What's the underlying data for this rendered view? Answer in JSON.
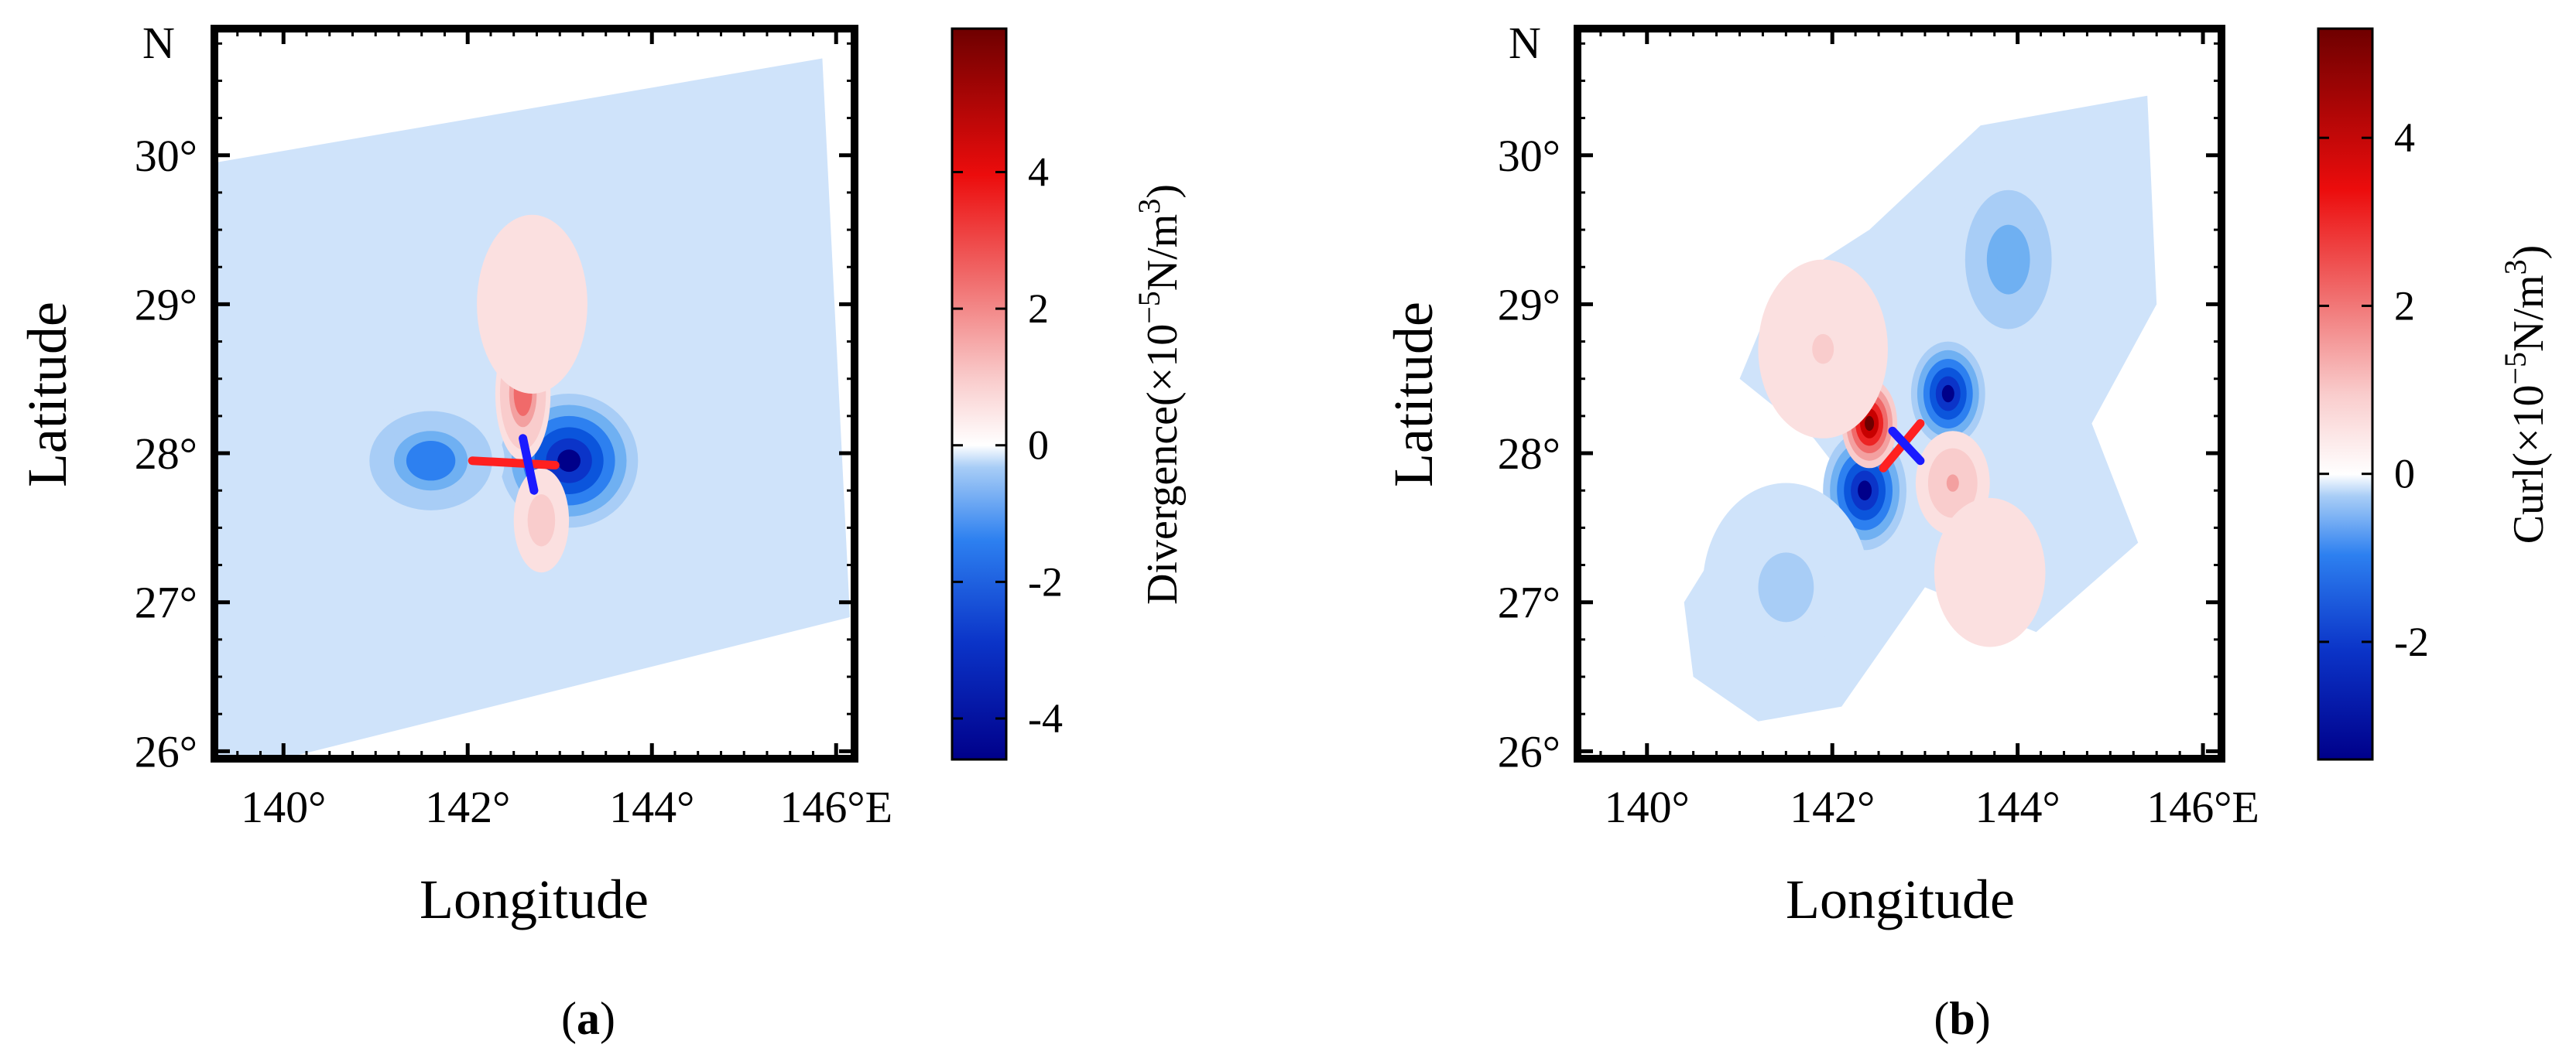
{
  "chart_data": [
    {
      "type": "heatmap",
      "panel_label": "a",
      "quantity": "Divergence",
      "colorbar_title_prefix": "Divergence(×10",
      "colorbar_exponent": "−5",
      "colorbar_unit": "N/m",
      "colorbar_unit_power": "3",
      "colorbar_unit_close": ")",
      "north_label": "N",
      "xlabel": "Longitude",
      "ylabel": "Latitude",
      "xlim": [
        139.25,
        146.2
      ],
      "ylim": [
        25.95,
        30.85
      ],
      "x_ticks": [
        140,
        142,
        144,
        146
      ],
      "x_tick_labels": [
        "140°",
        "142°",
        "144°",
        "146°E"
      ],
      "y_ticks": [
        26,
        27,
        28,
        29,
        30
      ],
      "y_tick_labels": [
        "26°",
        "27°",
        "28°",
        "29°",
        "30°"
      ],
      "clim": [
        -4.6,
        6.1
      ],
      "colorbar_ticks": [
        4,
        2,
        0,
        -2,
        -4
      ],
      "colorbar_tick_labels": [
        "4",
        "2",
        "0",
        "-2",
        "-4"
      ],
      "domain_polygon": [
        [
          139.25,
          29.95
        ],
        [
          145.85,
          30.65
        ],
        [
          146.15,
          26.9
        ],
        [
          140.0,
          25.95
        ],
        [
          139.25,
          25.95
        ]
      ],
      "features": [
        {
          "name": "central divergence lobe east",
          "lon": 143.1,
          "lat": 27.95,
          "value": -4.3,
          "rx": 0.75,
          "ry": 0.45
        },
        {
          "name": "central divergence lobe west",
          "lon": 141.6,
          "lat": 27.95,
          "value": -2.4,
          "rx": 0.8,
          "ry": 0.4
        },
        {
          "name": "positive divergence north",
          "lon": 142.6,
          "lat": 28.4,
          "value": 3.2,
          "rx": 0.3,
          "ry": 0.45
        },
        {
          "name": "positive divergence south",
          "lon": 142.8,
          "lat": 27.55,
          "value": 1.6,
          "rx": 0.3,
          "ry": 0.35
        },
        {
          "name": "weak positive north",
          "lon": 142.7,
          "lat": 29.0,
          "value": 0.8,
          "rx": 0.6,
          "ry": 0.6
        }
      ],
      "markers": [
        {
          "color": "#ff2020",
          "from": [
            142.05,
            27.95
          ],
          "to": [
            142.95,
            27.92
          ]
        },
        {
          "color": "#1a1aff",
          "from": [
            142.6,
            28.1
          ],
          "to": [
            142.72,
            27.75
          ]
        }
      ]
    },
    {
      "type": "heatmap",
      "panel_label": "b",
      "quantity": "Curl",
      "colorbar_title_prefix": "Curl(×10",
      "colorbar_exponent": "−5",
      "colorbar_unit": "N/m",
      "colorbar_unit_power": "3",
      "colorbar_unit_close": ")",
      "north_label": "N",
      "xlabel": "Longitude",
      "ylabel": "Latitude",
      "xlim": [
        139.25,
        146.2
      ],
      "ylim": [
        25.95,
        30.85
      ],
      "x_ticks": [
        140,
        142,
        144,
        146
      ],
      "x_tick_labels": [
        "140°",
        "142°",
        "144°",
        "146°E"
      ],
      "y_ticks": [
        26,
        27,
        28,
        29,
        30
      ],
      "y_tick_labels": [
        "26°",
        "27°",
        "28°",
        "29°",
        "30°"
      ],
      "clim": [
        -3.4,
        5.3
      ],
      "colorbar_ticks": [
        4,
        2,
        0,
        -2
      ],
      "colorbar_tick_labels": [
        "4",
        "2",
        "0",
        "-2"
      ],
      "domain_polygon": [
        [
          140.4,
          27.0
        ],
        [
          141.0,
          27.6
        ],
        [
          142.3,
          27.7
        ],
        [
          141.8,
          28.1
        ],
        [
          141.0,
          28.5
        ],
        [
          141.4,
          29.1
        ],
        [
          142.4,
          29.5
        ],
        [
          143.6,
          30.2
        ],
        [
          145.4,
          30.4
        ],
        [
          145.5,
          29.0
        ],
        [
          144.8,
          28.2
        ],
        [
          145.3,
          27.4
        ],
        [
          144.2,
          26.8
        ],
        [
          143.0,
          27.1
        ],
        [
          142.1,
          26.3
        ],
        [
          141.2,
          26.2
        ],
        [
          140.5,
          26.5
        ]
      ],
      "features": [
        {
          "name": "negative curl northeast",
          "lon": 143.25,
          "lat": 28.4,
          "value": -3.2,
          "rx": 0.4,
          "ry": 0.35
        },
        {
          "name": "negative curl southwest",
          "lon": 142.35,
          "lat": 27.75,
          "value": -3.0,
          "rx": 0.45,
          "ry": 0.4
        },
        {
          "name": "positive curl northwest",
          "lon": 142.4,
          "lat": 28.2,
          "value": 4.8,
          "rx": 0.3,
          "ry": 0.3
        },
        {
          "name": "positive curl southeast",
          "lon": 143.3,
          "lat": 27.8,
          "value": 1.8,
          "rx": 0.4,
          "ry": 0.35
        },
        {
          "name": "weak positive northwest",
          "lon": 141.9,
          "lat": 28.7,
          "value": 0.9,
          "rx": 0.7,
          "ry": 0.6
        },
        {
          "name": "weak positive southeast",
          "lon": 143.7,
          "lat": 27.2,
          "value": 0.6,
          "rx": 0.6,
          "ry": 0.5
        },
        {
          "name": "weak negative north",
          "lon": 143.9,
          "lat": 29.3,
          "value": -1.2,
          "rx": 0.7,
          "ry": 0.7
        },
        {
          "name": "weak negative southwest",
          "lon": 141.5,
          "lat": 27.1,
          "value": -0.6,
          "rx": 0.9,
          "ry": 0.7
        }
      ],
      "markers": [
        {
          "color": "#ff2020",
          "from": [
            142.55,
            27.9
          ],
          "to": [
            142.95,
            28.2
          ]
        },
        {
          "color": "#1a1aff",
          "from": [
            142.65,
            28.15
          ],
          "to": [
            142.95,
            27.95
          ]
        }
      ]
    }
  ]
}
